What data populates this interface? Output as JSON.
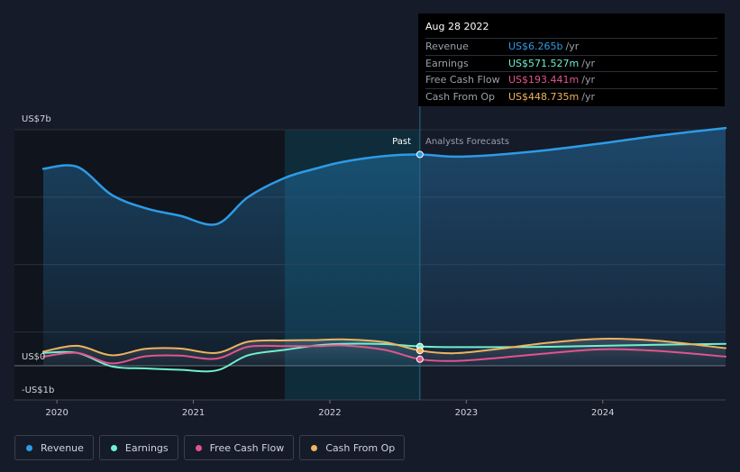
{
  "tooltip": {
    "date": "Aug 28 2022",
    "rows": [
      {
        "label": "Revenue",
        "value": "US$6.265b",
        "unit": "/yr",
        "color": "#2d9be6"
      },
      {
        "label": "Earnings",
        "value": "US$571.527m",
        "unit": "/yr",
        "color": "#6ff0d0"
      },
      {
        "label": "Free Cash Flow",
        "value": "US$193.441m",
        "unit": "/yr",
        "color": "#e2548d"
      },
      {
        "label": "Cash From Op",
        "value": "US$448.735m",
        "unit": "/yr",
        "color": "#f0b35f"
      }
    ]
  },
  "markers": {
    "past": "Past",
    "forecast": "Analysts Forecasts"
  },
  "legend": [
    {
      "label": "Revenue",
      "color": "#2d9be6"
    },
    {
      "label": "Earnings",
      "color": "#6ff0d0"
    },
    {
      "label": "Free Cash Flow",
      "color": "#e2548d"
    },
    {
      "label": "Cash From Op",
      "color": "#f0b35f"
    }
  ],
  "chart_data": {
    "type": "line",
    "title": "",
    "xlabel": "",
    "ylabel": "",
    "x_ticks": [
      "2020",
      "2021",
      "2022",
      "2023",
      "2024"
    ],
    "y_tick_labels": [
      "US$7b",
      "US$0",
      "-US$1b"
    ],
    "y_unit": "US$b",
    "ylim": [
      -1,
      7
    ],
    "xlim": [
      2019.9,
      2024.9
    ],
    "past_end": 2022.66,
    "shaded_start": 2021.67,
    "grid": true,
    "legend_position": "bottom-left",
    "series": [
      {
        "name": "Revenue",
        "color": "#2d9be6",
        "area": true,
        "points": [
          [
            2019.9,
            5.84
          ],
          [
            2020.15,
            5.9
          ],
          [
            2020.4,
            5.07
          ],
          [
            2020.65,
            4.67
          ],
          [
            2020.9,
            4.45
          ],
          [
            2021.17,
            4.2
          ],
          [
            2021.4,
            5.0
          ],
          [
            2021.67,
            5.57
          ],
          [
            2021.9,
            5.85
          ],
          [
            2022.1,
            6.05
          ],
          [
            2022.4,
            6.22
          ],
          [
            2022.66,
            6.265
          ],
          [
            2022.9,
            6.2
          ],
          [
            2023.2,
            6.25
          ],
          [
            2023.6,
            6.4
          ],
          [
            2024.0,
            6.6
          ],
          [
            2024.4,
            6.82
          ],
          [
            2024.9,
            7.05
          ]
        ]
      },
      {
        "name": "Earnings",
        "color": "#6ff0d0",
        "area": false,
        "points": [
          [
            2019.9,
            0.38
          ],
          [
            2020.15,
            0.38
          ],
          [
            2020.4,
            -0.02
          ],
          [
            2020.65,
            -0.08
          ],
          [
            2020.9,
            -0.12
          ],
          [
            2021.17,
            -0.14
          ],
          [
            2021.4,
            0.31
          ],
          [
            2021.67,
            0.47
          ],
          [
            2021.9,
            0.6
          ],
          [
            2022.1,
            0.65
          ],
          [
            2022.4,
            0.64
          ],
          [
            2022.66,
            0.571
          ],
          [
            2022.9,
            0.55
          ],
          [
            2023.2,
            0.55
          ],
          [
            2023.6,
            0.56
          ],
          [
            2024.0,
            0.59
          ],
          [
            2024.4,
            0.62
          ],
          [
            2024.9,
            0.65
          ]
        ]
      },
      {
        "name": "Free Cash Flow",
        "color": "#e2548d",
        "area": false,
        "points": [
          [
            2019.9,
            0.27
          ],
          [
            2020.15,
            0.38
          ],
          [
            2020.4,
            0.07
          ],
          [
            2020.65,
            0.28
          ],
          [
            2020.9,
            0.3
          ],
          [
            2021.17,
            0.21
          ],
          [
            2021.4,
            0.56
          ],
          [
            2021.67,
            0.58
          ],
          [
            2021.9,
            0.58
          ],
          [
            2022.1,
            0.6
          ],
          [
            2022.4,
            0.47
          ],
          [
            2022.66,
            0.193
          ],
          [
            2022.9,
            0.14
          ],
          [
            2023.2,
            0.22
          ],
          [
            2023.6,
            0.37
          ],
          [
            2024.0,
            0.49
          ],
          [
            2024.4,
            0.44
          ],
          [
            2024.9,
            0.27
          ]
        ]
      },
      {
        "name": "Cash From Op",
        "color": "#f0b35f",
        "area": false,
        "points": [
          [
            2019.9,
            0.42
          ],
          [
            2020.15,
            0.59
          ],
          [
            2020.4,
            0.31
          ],
          [
            2020.65,
            0.5
          ],
          [
            2020.9,
            0.51
          ],
          [
            2021.17,
            0.38
          ],
          [
            2021.4,
            0.71
          ],
          [
            2021.67,
            0.75
          ],
          [
            2021.9,
            0.76
          ],
          [
            2022.1,
            0.78
          ],
          [
            2022.4,
            0.7
          ],
          [
            2022.66,
            0.449
          ],
          [
            2022.9,
            0.37
          ],
          [
            2023.2,
            0.48
          ],
          [
            2023.6,
            0.68
          ],
          [
            2024.0,
            0.8
          ],
          [
            2024.4,
            0.74
          ],
          [
            2024.9,
            0.52
          ]
        ]
      }
    ]
  }
}
